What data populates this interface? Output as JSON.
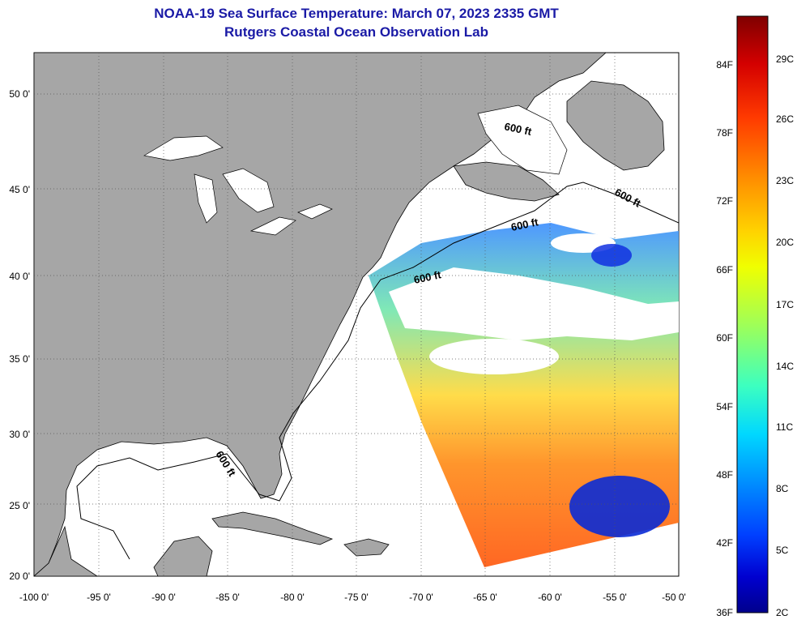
{
  "header": {
    "title": "NOAA-19 Sea Surface Temperature:  March 07, 2023 2335 GMT",
    "subtitle": "Rutgers Coastal Ocean Observation Lab"
  },
  "map": {
    "lon_range": [
      -100,
      -50
    ],
    "lat_range": [
      20,
      52.5
    ],
    "lon_ticks": [
      "-100 0'",
      "-95 0'",
      "-90 0'",
      "-85 0'",
      "-80 0'",
      "-75 0'",
      "-70 0'",
      "-65 0'",
      "-60 0'",
      "-55 0'",
      "-50 0'"
    ],
    "lat_ticks": [
      "20 0'",
      "25 0'",
      "30 0'",
      "35 0'",
      "40 0'",
      "45 0'",
      "50 0'"
    ],
    "contour_labels": [
      "600 ft",
      "600 ft",
      "600 ft",
      "600 ft",
      "600 ft"
    ],
    "colors": {
      "land": "#a6a6a6",
      "ocean_no_data": "#ffffff",
      "grid": "#555555",
      "coastline": "#000000"
    }
  },
  "colorbar": {
    "fahrenheit_labels": [
      "84F",
      "78F",
      "72F",
      "66F",
      "60F",
      "54F",
      "48F",
      "42F",
      "36F"
    ],
    "celsius_labels": [
      "29C",
      "26C",
      "23C",
      "20C",
      "17C",
      "14C",
      "11C",
      "8C",
      "5C",
      "2C"
    ],
    "colors_top_to_bottom": [
      "#7f0000",
      "#d40000",
      "#ff3a00",
      "#ff8c00",
      "#ffd200",
      "#f0ff00",
      "#9dff5a",
      "#3cffc0",
      "#00d8ff",
      "#0090ff",
      "#0040ff",
      "#0000d0",
      "#00008c"
    ]
  }
}
